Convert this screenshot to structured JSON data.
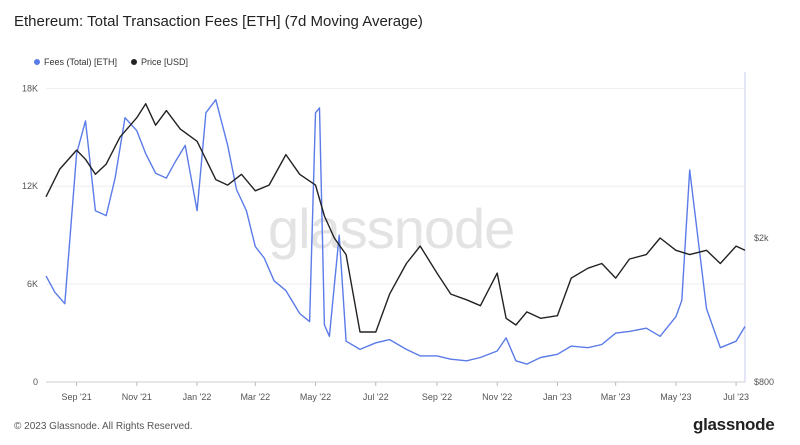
{
  "title": "Ethereum: Total Transaction Fees [ETH] (7d Moving Average)",
  "footer": "© 2023 Glassnode. All Rights Reserved.",
  "brand": "glassnode",
  "watermark": "glassnode",
  "colors": {
    "fees": "#5b7be8",
    "price": "#222222",
    "grid": "#eeeeee"
  },
  "chart_data": {
    "type": "line",
    "title": "Ethereum: Total Transaction Fees [ETH] (7d Moving Average)",
    "x_ticks": [
      "Sep '21",
      "Nov '21",
      "Jan '22",
      "Mar '22",
      "May '22",
      "Jul '22",
      "Sep '22",
      "Nov '22",
      "Jan '23",
      "Mar '23",
      "May '23",
      "Jul '23"
    ],
    "left_axis": {
      "ticks": [
        "0",
        "6K",
        "12K",
        "18K"
      ],
      "ylim": [
        0,
        19000
      ]
    },
    "right_axis": {
      "ticks": [
        "$800",
        "$2k"
      ],
      "scale": "log"
    },
    "grid": true,
    "legend_position": "top-left",
    "series": [
      {
        "name": "Fees (Total) [ETH]",
        "axis": "left",
        "x": [
          "2021-08-01",
          "2021-08-10",
          "2021-08-20",
          "2021-09-01",
          "2021-09-10",
          "2021-09-20",
          "2021-10-01",
          "2021-10-10",
          "2021-10-20",
          "2021-11-01",
          "2021-11-10",
          "2021-11-20",
          "2021-12-01",
          "2021-12-10",
          "2021-12-20",
          "2022-01-01",
          "2022-01-10",
          "2022-01-20",
          "2022-02-01",
          "2022-02-10",
          "2022-02-20",
          "2022-03-01",
          "2022-03-10",
          "2022-03-20",
          "2022-04-01",
          "2022-04-15",
          "2022-04-25",
          "2022-05-01",
          "2022-05-05",
          "2022-05-10",
          "2022-05-15",
          "2022-05-25",
          "2022-06-01",
          "2022-06-15",
          "2022-07-01",
          "2022-07-15",
          "2022-08-01",
          "2022-08-15",
          "2022-09-01",
          "2022-09-15",
          "2022-10-01",
          "2022-10-15",
          "2022-11-01",
          "2022-11-10",
          "2022-11-20",
          "2022-12-01",
          "2022-12-15",
          "2023-01-01",
          "2023-01-15",
          "2023-02-01",
          "2023-02-15",
          "2023-03-01",
          "2023-03-15",
          "2023-04-01",
          "2023-04-15",
          "2023-05-01",
          "2023-05-07",
          "2023-05-15",
          "2023-06-01",
          "2023-06-15",
          "2023-07-01",
          "2023-07-10"
        ],
        "values": [
          6500,
          5500,
          4800,
          14000,
          16000,
          10500,
          10200,
          12500,
          16200,
          15400,
          14000,
          12800,
          12500,
          13500,
          14500,
          10500,
          16500,
          17300,
          14500,
          11800,
          10500,
          8300,
          7600,
          6200,
          5600,
          4200,
          3700,
          16500,
          16800,
          3500,
          2800,
          9000,
          2500,
          2000,
          2400,
          2600,
          2000,
          1600,
          1600,
          1400,
          1300,
          1500,
          1900,
          2700,
          1300,
          1100,
          1500,
          1700,
          2200,
          2100,
          2300,
          3000,
          3100,
          3300,
          2800,
          4000,
          5000,
          13000,
          4500,
          2100,
          2500,
          3400
        ]
      },
      {
        "name": "Price [USD]",
        "axis": "right",
        "x": [
          "2021-08-01",
          "2021-08-15",
          "2021-09-01",
          "2021-09-10",
          "2021-09-20",
          "2021-10-01",
          "2021-10-15",
          "2021-11-01",
          "2021-11-10",
          "2021-11-20",
          "2021-12-01",
          "2021-12-15",
          "2022-01-01",
          "2022-01-10",
          "2022-01-20",
          "2022-02-01",
          "2022-02-15",
          "2022-03-01",
          "2022-03-15",
          "2022-04-01",
          "2022-04-15",
          "2022-05-01",
          "2022-05-10",
          "2022-05-20",
          "2022-06-01",
          "2022-06-15",
          "2022-07-01",
          "2022-07-15",
          "2022-08-01",
          "2022-08-15",
          "2022-09-01",
          "2022-09-15",
          "2022-10-01",
          "2022-10-15",
          "2022-11-01",
          "2022-11-10",
          "2022-11-20",
          "2022-12-01",
          "2022-12-15",
          "2023-01-01",
          "2023-01-15",
          "2023-02-01",
          "2023-02-15",
          "2023-03-01",
          "2023-03-15",
          "2023-04-01",
          "2023-04-15",
          "2023-05-01",
          "2023-05-15",
          "2023-06-01",
          "2023-06-15",
          "2023-07-01",
          "2023-07-10"
        ],
        "values": [
          2600,
          3100,
          3500,
          3300,
          3000,
          3200,
          3800,
          4300,
          4700,
          4100,
          4500,
          4000,
          3700,
          3300,
          2900,
          2800,
          3000,
          2700,
          2800,
          3400,
          3000,
          2800,
          2300,
          2000,
          1800,
          1100,
          1100,
          1400,
          1700,
          1900,
          1600,
          1400,
          1350,
          1300,
          1600,
          1200,
          1150,
          1250,
          1200,
          1220,
          1550,
          1650,
          1700,
          1550,
          1750,
          1800,
          2000,
          1850,
          1800,
          1850,
          1700,
          1900,
          1850
        ]
      }
    ]
  }
}
